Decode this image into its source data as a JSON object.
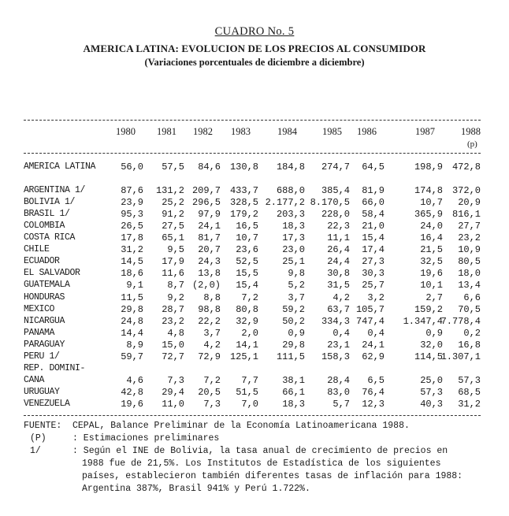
{
  "header": {
    "cuadro": "CUADRO No. 5",
    "title": "AMERICA LATINA: EVOLUCION DE LOS PRECIOS AL CONSUMIDOR",
    "subtitle": "(Variaciones porcentuales de diciembre a diciembre)"
  },
  "columns": [
    "1980",
    "1981",
    "1982",
    "1983",
    "1984",
    "1985",
    "1986",
    "1987",
    "1988"
  ],
  "column_note": "(p)",
  "summary_row": {
    "label": "AMERICA LATINA",
    "values": [
      "56,0",
      "57,5",
      "84,6",
      "130,8",
      "184,8",
      "274,7",
      "64,5",
      "198,9",
      "472,8"
    ]
  },
  "rows": [
    {
      "label": "ARGENTINA 1/",
      "values": [
        "87,6",
        "131,2",
        "209,7",
        "433,7",
        "688,0",
        "385,4",
        "81,9",
        "174,8",
        "372,0"
      ]
    },
    {
      "label": "BOLIVIA 1/",
      "values": [
        "23,9",
        "25,2",
        "296,5",
        "328,5",
        "2.177,2",
        "8.170,5",
        "66,0",
        "10,7",
        "20,9"
      ]
    },
    {
      "label": "BRASIL 1/",
      "values": [
        "95,3",
        "91,2",
        "97,9",
        "179,2",
        "203,3",
        "228,0",
        "58,4",
        "365,9",
        "816,1"
      ]
    },
    {
      "label": "COLOMBIA",
      "values": [
        "26,5",
        "27,5",
        "24,1",
        "16,5",
        "18,3",
        "22,3",
        "21,0",
        "24,0",
        "27,7"
      ]
    },
    {
      "label": "COSTA RICA",
      "values": [
        "17,8",
        "65,1",
        "81,7",
        "10,7",
        "17,3",
        "11,1",
        "15,4",
        "16,4",
        "23,2"
      ]
    },
    {
      "label": "CHILE",
      "values": [
        "31,2",
        "9,5",
        "20,7",
        "23,6",
        "23,0",
        "26,4",
        "17,4",
        "21,5",
        "10,9"
      ]
    },
    {
      "label": "ECUADOR",
      "values": [
        "14,5",
        "17,9",
        "24,3",
        "52,5",
        "25,1",
        "24,4",
        "27,3",
        "32,5",
        "80,5"
      ]
    },
    {
      "label": "EL SALVADOR",
      "values": [
        "18,6",
        "11,6",
        "13,8",
        "15,5",
        "9,8",
        "30,8",
        "30,3",
        "19,6",
        "18,0"
      ]
    },
    {
      "label": "GUATEMALA",
      "values": [
        "9,1",
        "8,7",
        "(2,0)",
        "15,4",
        "5,2",
        "31,5",
        "25,7",
        "10,1",
        "13,4"
      ]
    },
    {
      "label": "HONDURAS",
      "values": [
        "11,5",
        "9,2",
        "8,8",
        "7,2",
        "3,7",
        "4,2",
        "3,2",
        "2,7",
        "6,6"
      ]
    },
    {
      "label": "MEXICO",
      "values": [
        "29,8",
        "28,7",
        "98,8",
        "80,8",
        "59,2",
        "63,7",
        "105,7",
        "159,2",
        "70,5"
      ]
    },
    {
      "label": "NICARGUA",
      "values": [
        "24,8",
        "23,2",
        "22,2",
        "32,9",
        "50,2",
        "334,3",
        "747,4",
        "1.347,4",
        "7.778,4"
      ]
    },
    {
      "label": "PANAMA",
      "values": [
        "14,4",
        "4,8",
        "3,7",
        "2,0",
        "0,9",
        "0,4",
        "0,4",
        "0,9",
        "0,2"
      ]
    },
    {
      "label": "PARAGUAY",
      "values": [
        "8,9",
        "15,0",
        "4,2",
        "14,1",
        "29,8",
        "23,1",
        "24,1",
        "32,0",
        "16,8"
      ]
    },
    {
      "label": "PERU 1/",
      "values": [
        "59,7",
        "72,7",
        "72,9",
        "125,1",
        "111,5",
        "158,3",
        "62,9",
        "114,5",
        "1.307,1"
      ]
    },
    {
      "label": "REP. DOMINI-",
      "values": []
    },
    {
      "label": "CANA",
      "values": [
        "4,6",
        "7,3",
        "7,2",
        "7,7",
        "38,1",
        "28,4",
        "6,5",
        "25,0",
        "57,3"
      ]
    },
    {
      "label": "URUGUAY",
      "values": [
        "42,8",
        "29,4",
        "20,5",
        "51,5",
        "66,1",
        "83,0",
        "76,4",
        "57,3",
        "68,5"
      ]
    },
    {
      "label": "VENEZUELA",
      "values": [
        "19,6",
        "11,0",
        "7,3",
        "7,0",
        "18,3",
        "5,7",
        "12,3",
        "40,3",
        "31,2"
      ]
    }
  ],
  "notes": {
    "fuente_key": "FUENTE:",
    "fuente_text": "CEPAL, Balance Preliminar de la Economía Latinoamericana 1988.",
    "p_key": "(P)",
    "p_text": ": Estimaciones preliminares",
    "one_key": "1/",
    "one_lines": [
      ": Según el INE de Bolivia, la tasa anual de crecimiento de precios en",
      "1988 fue de 21,5%.  Los Institutos de Estadística de los siguientes",
      "países, establecieron también diferentes tasas de inflación para 1988:",
      "Argentina 387%, Brasil 941% y Perú 1.722%."
    ]
  }
}
